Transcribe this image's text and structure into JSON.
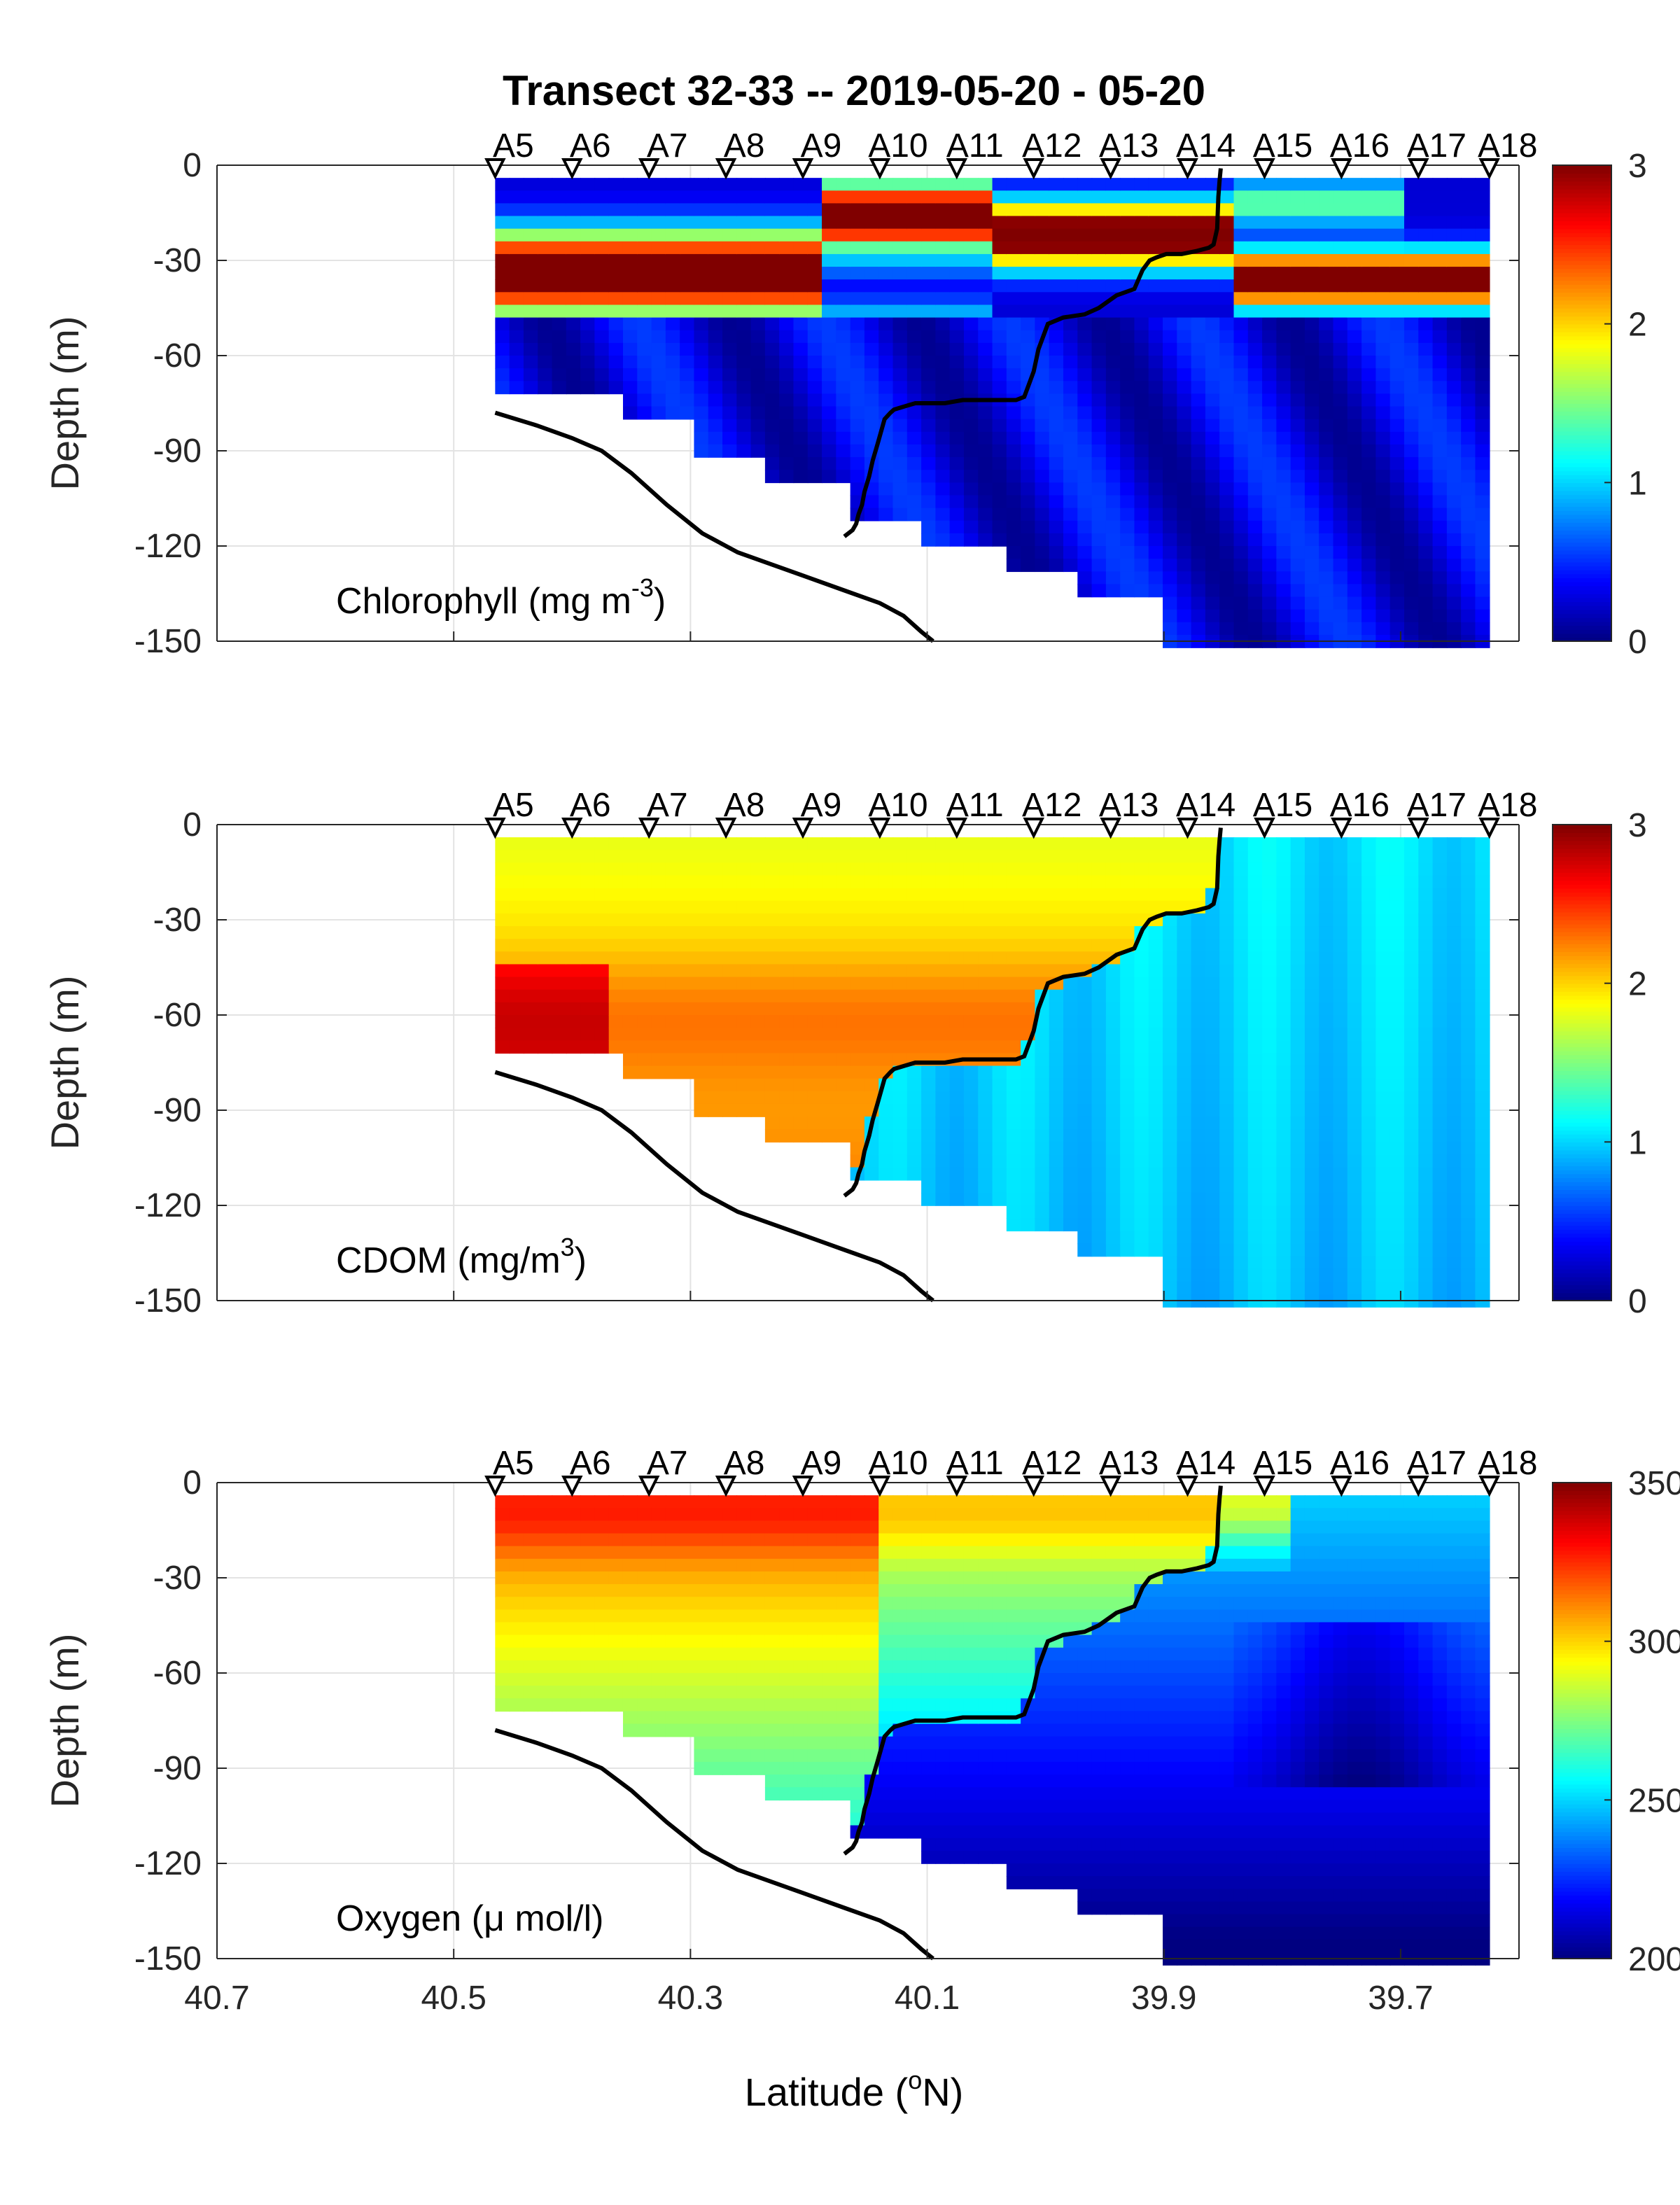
{
  "chart_data": {
    "type": "heatmap",
    "title": "Transect 32-33 -- 2019-05-20 - 05-20",
    "xlabel": "Latitude (",
    "xlabel_sup": "o",
    "xlabel_end": "N)",
    "x_axis": {
      "reversed": true,
      "xlim": [
        40.7,
        39.6
      ],
      "ticks": [
        40.7,
        40.5,
        40.3,
        40.1,
        39.9,
        39.7
      ],
      "tick_labels": [
        "40.7",
        "40.5",
        "40.3",
        "40.1",
        "39.9",
        "39.7"
      ]
    },
    "grid": true,
    "stations": [
      {
        "name": "A5",
        "lat": 40.465
      },
      {
        "name": "A6",
        "lat": 40.4
      },
      {
        "name": "A7",
        "lat": 40.335
      },
      {
        "name": "A8",
        "lat": 40.27
      },
      {
        "name": "A9",
        "lat": 40.205
      },
      {
        "name": "A10",
        "lat": 40.14
      },
      {
        "name": "A11",
        "lat": 40.075
      },
      {
        "name": "A12",
        "lat": 40.01
      },
      {
        "name": "A13",
        "lat": 39.945
      },
      {
        "name": "A14",
        "lat": 39.88
      },
      {
        "name": "A15",
        "lat": 39.815
      },
      {
        "name": "A16",
        "lat": 39.75
      },
      {
        "name": "A17",
        "lat": 39.685
      },
      {
        "name": "A18",
        "lat": 39.625
      }
    ],
    "bottom_depth": {
      "lat": [
        40.465,
        40.43,
        40.4,
        40.375,
        40.35,
        40.32,
        40.29,
        40.26,
        40.23,
        40.2,
        40.17,
        40.14,
        40.12,
        40.105,
        40.095
      ],
      "depth": [
        -78,
        -82,
        -86,
        -90,
        -97,
        -107,
        -116,
        -122,
        -126,
        -130,
        -134,
        -138,
        -142,
        -147,
        -150
      ]
    },
    "front_line": {
      "lat": [
        40.17,
        40.163,
        40.16,
        40.158,
        40.155,
        40.153,
        40.149,
        40.146,
        40.142,
        40.139,
        40.136,
        40.131,
        40.128,
        40.119,
        40.11,
        40.098,
        40.085,
        40.07,
        40.055,
        40.04,
        40.025,
        40.018,
        40.014,
        40.01,
        40.006,
        39.998,
        39.985,
        39.967,
        39.955,
        39.94,
        39.925,
        39.918,
        39.912,
        39.906,
        39.898,
        39.885,
        39.872,
        39.862,
        39.858,
        39.855,
        39.854,
        39.853,
        39.852
      ],
      "depth": [
        -117,
        -115,
        -113,
        -110,
        -107,
        -103,
        -98,
        -93,
        -88,
        -84,
        -80,
        -78,
        -77,
        -76,
        -75,
        -75,
        -75,
        -74,
        -74,
        -74,
        -74,
        -73,
        -69,
        -65,
        -58,
        -50,
        -48,
        -47,
        -45,
        -41,
        -39,
        -33,
        -30,
        -29,
        -28,
        -28,
        -27,
        -26,
        -25,
        -20,
        -10,
        -5,
        -1
      ]
    },
    "panels": [
      {
        "variable": "chlorophyll",
        "label": "Chlorophyll (mg m",
        "label_sup": "-3",
        "label_end": ")",
        "ylabel": "Depth (m)",
        "ylim": [
          -150,
          0
        ],
        "yticks": [
          0,
          -30,
          -60,
          -90,
          -120,
          -150
        ],
        "ytick_labels": [
          "0",
          "-30",
          "-60",
          "-90",
          "-120",
          "-150"
        ],
        "clim": [
          0,
          3
        ],
        "cticks": [
          0,
          1,
          2,
          3
        ],
        "ctick_labels": [
          "0",
          "1",
          "2",
          "3"
        ],
        "colormap": "jet"
      },
      {
        "variable": "cdom",
        "label": "CDOM (mg/m",
        "label_sup": "3",
        "label_end": ")",
        "ylabel": "Depth (m)",
        "ylim": [
          -150,
          0
        ],
        "yticks": [
          0,
          -30,
          -60,
          -90,
          -120,
          -150
        ],
        "ytick_labels": [
          "0",
          "-30",
          "-60",
          "-90",
          "-120",
          "-150"
        ],
        "clim": [
          0,
          3
        ],
        "cticks": [
          0,
          1,
          2,
          3
        ],
        "ctick_labels": [
          "0",
          "1",
          "2",
          "3"
        ],
        "colormap": "jet"
      },
      {
        "variable": "oxygen",
        "label": "Oxygen (μ mol/l)",
        "label_sup": "",
        "label_end": "",
        "ylabel": "Depth (m)",
        "ylim": [
          -150,
          0
        ],
        "yticks": [
          0,
          -30,
          -60,
          -90,
          -120,
          -150
        ],
        "ytick_labels": [
          "0",
          "-30",
          "-60",
          "-90",
          "-120",
          "-150"
        ],
        "clim": [
          200,
          350
        ],
        "cticks": [
          200,
          250,
          300,
          350
        ],
        "ctick_labels": [
          "200",
          "250",
          "300",
          "350"
        ],
        "colormap": "jet"
      }
    ]
  }
}
